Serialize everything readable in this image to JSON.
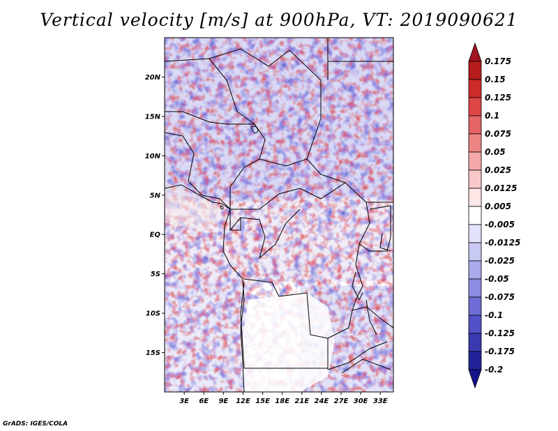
{
  "title": "Vertical velocity [m/s] at 900hPa, VT: 2019090621",
  "credit": "GrADS: IGES/COLA",
  "map": {
    "lat_labels": [
      "20N",
      "15N",
      "10N",
      "5N",
      "EQ",
      "5S",
      "10S",
      "15S"
    ],
    "lat_values": [
      20,
      15,
      10,
      5,
      0,
      -5,
      -10,
      -15
    ],
    "lon_labels": [
      "3E",
      "6E",
      "9E",
      "12E",
      "15E",
      "18E",
      "21E",
      "24E",
      "27E",
      "30E",
      "33E"
    ],
    "lon_values": [
      3,
      6,
      9,
      12,
      15,
      18,
      21,
      24,
      27,
      30,
      33
    ],
    "lat_range": [
      -20,
      25
    ],
    "lon_range": [
      0,
      35
    ]
  },
  "colorbar": {
    "labels": [
      "0.175",
      "0.15",
      "0.125",
      "0.1",
      "0.075",
      "0.05",
      "0.025",
      "0.0125",
      "0.005",
      "-0.005",
      "-0.0125",
      "-0.025",
      "-0.05",
      "-0.075",
      "-0.1",
      "-0.125",
      "-0.175",
      "-0.2"
    ],
    "colors": [
      "#a0141e",
      "#b71c1c",
      "#cd2a2a",
      "#de4545",
      "#e66464",
      "#ee8585",
      "#f5a8a8",
      "#f9c9c9",
      "#fce6e6",
      "#ffffff",
      "#e2e2fb",
      "#c8c8f4",
      "#aaaaec",
      "#8c8ce2",
      "#6e6ed6",
      "#5252c6",
      "#3a3ab0",
      "#22229a",
      "#14148a"
    ]
  }
}
